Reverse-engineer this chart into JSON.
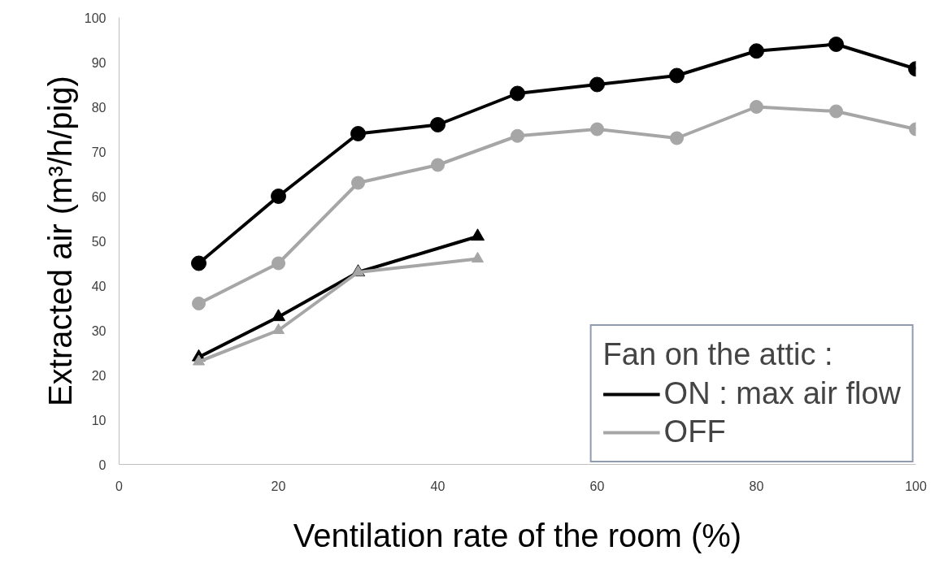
{
  "chart_data": {
    "type": "line",
    "xlabel": "Ventilation rate of the room (%)",
    "ylabel": "Extracted air (m³/h/pig)",
    "legend_title": "Fan on the attic :",
    "x": [
      10,
      20,
      30,
      40,
      50,
      60,
      70,
      80,
      90,
      100
    ],
    "series": [
      {
        "name": "ON : max air flow",
        "color": "#000000",
        "marker": "circle",
        "values": [
          45,
          60,
          74,
          76,
          83,
          85,
          87,
          92.5,
          94,
          88.5
        ]
      },
      {
        "name": "OFF",
        "color": "#a6a6a6",
        "marker": "circle",
        "values": [
          36,
          45,
          63,
          67,
          73.5,
          75,
          73,
          80,
          79,
          75
        ]
      },
      {
        "color": "#000000",
        "marker": "triangle",
        "x": [
          10,
          20,
          30,
          45
        ],
        "values": [
          24,
          33,
          43,
          51
        ]
      },
      {
        "color": "#a6a6a6",
        "marker": "triangle",
        "x": [
          10,
          20,
          30,
          45
        ],
        "values": [
          23,
          30,
          43,
          46
        ]
      }
    ],
    "xlim": [
      0,
      100
    ],
    "ylim": [
      0,
      100
    ],
    "xticks": [
      0,
      20,
      40,
      60,
      80,
      100
    ],
    "yticks": [
      0,
      10,
      20,
      30,
      40,
      50,
      60,
      70,
      80,
      90,
      100
    ],
    "grid": false,
    "legend": "bottom right",
    "line_style": "solid"
  }
}
